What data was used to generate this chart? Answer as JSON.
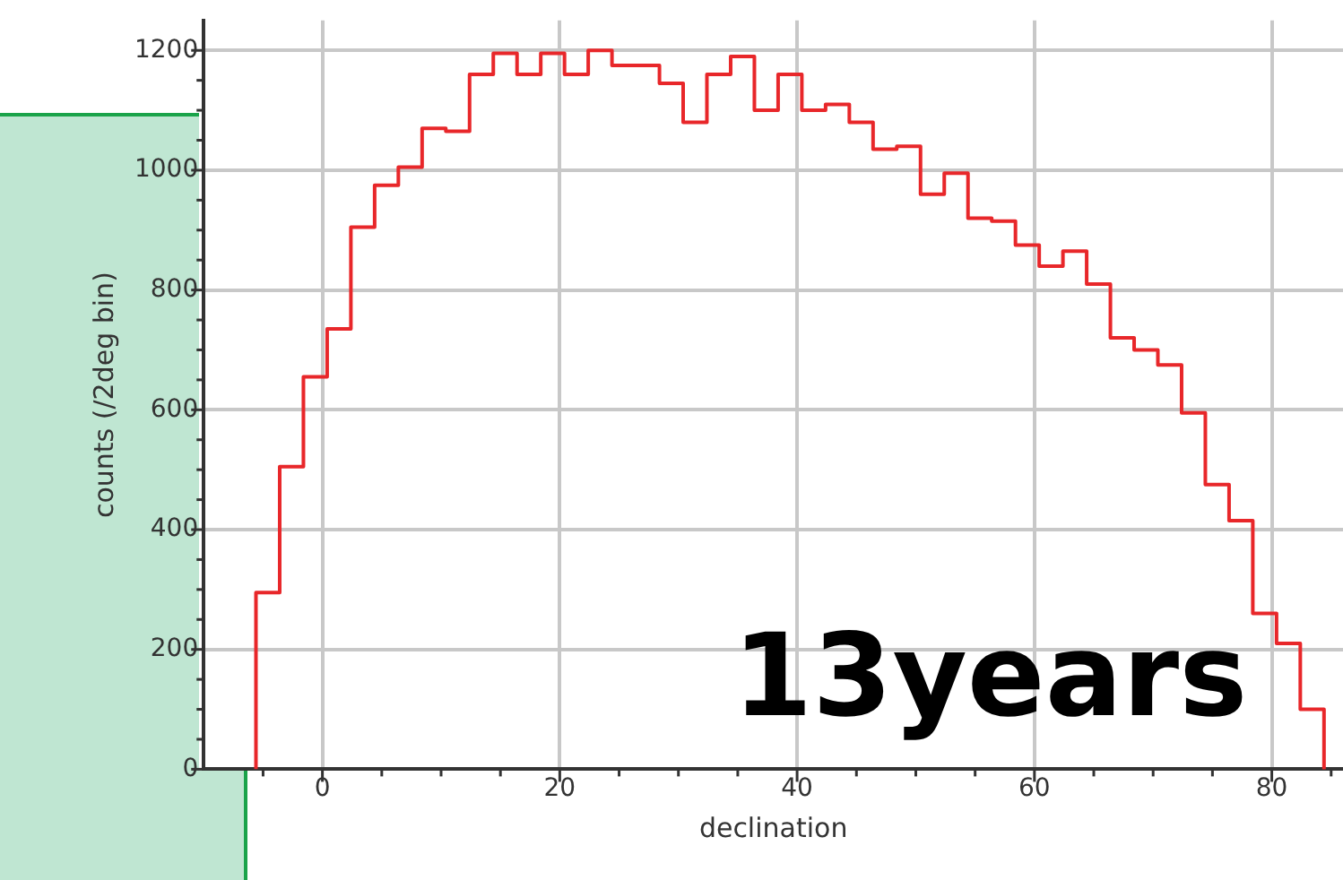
{
  "chart_data": {
    "type": "histogram",
    "xlabel": "declination",
    "ylabel": "counts (/2deg bin)",
    "annotations": [
      "13years"
    ],
    "bins": [
      -5.6,
      -3.6,
      -1.6,
      0.4,
      2.4,
      4.4,
      6.4,
      8.4,
      10.4,
      12.4,
      14.4,
      16.4,
      18.4,
      20.4,
      22.4,
      24.4,
      26.4,
      28.4,
      30.4,
      32.4,
      34.4,
      36.4,
      38.4,
      40.4,
      42.4,
      44.4,
      46.4,
      48.4,
      50.4,
      52.4,
      54.4,
      56.4,
      58.4,
      60.4,
      62.4,
      64.4,
      66.4,
      68.4,
      70.4,
      72.4,
      74.4,
      76.4,
      78.4,
      80.4,
      82.4,
      84.4
    ],
    "values": [
      295,
      505,
      655,
      735,
      905,
      975,
      1005,
      1070,
      1065,
      1160,
      1195,
      1160,
      1195,
      1160,
      1200,
      1175,
      1175,
      1145,
      1080,
      1160,
      1190,
      1100,
      1160,
      1100,
      1110,
      1080,
      1035,
      1040,
      960,
      995,
      920,
      915,
      875,
      840,
      865,
      810,
      720,
      700,
      675,
      595,
      475,
      415,
      260,
      210,
      100
    ],
    "color": "#e8272a",
    "xlim": [
      -10,
      86
    ],
    "xticks": [
      {
        "value": -5,
        "label": null
      },
      0,
      {
        "value": 5,
        "label": null
      },
      {
        "value": 10,
        "label": null
      },
      {
        "value": 15,
        "label": null
      },
      20,
      {
        "value": 25,
        "label": null
      },
      {
        "value": 30,
        "label": null
      },
      {
        "value": 35,
        "label": null
      },
      40,
      {
        "value": 45,
        "label": null
      },
      {
        "value": 50,
        "label": null
      },
      {
        "value": 55,
        "label": null
      },
      60,
      {
        "value": 65,
        "label": null
      },
      {
        "value": 70,
        "label": null
      },
      {
        "value": 75,
        "label": null
      },
      80,
      {
        "value": 85,
        "label": null
      }
    ],
    "ylim": [
      0,
      1250
    ],
    "yticks": [
      0,
      {
        "value": 50,
        "label": null
      },
      {
        "value": 100,
        "label": null
      },
      {
        "value": 150,
        "label": null
      },
      200,
      {
        "value": 250,
        "label": null
      },
      {
        "value": 300,
        "label": null
      },
      {
        "value": 350,
        "label": null
      },
      400,
      {
        "value": 450,
        "label": null
      },
      {
        "value": 500,
        "label": null
      },
      {
        "value": 550,
        "label": null
      },
      600,
      {
        "value": 650,
        "label": null
      },
      {
        "value": 700,
        "label": null
      },
      {
        "value": 750,
        "label": null
      },
      800,
      {
        "value": 850,
        "label": null
      },
      {
        "value": 900,
        "label": null
      },
      {
        "value": 950,
        "label": null
      },
      1000,
      {
        "value": 1050,
        "label": null
      },
      {
        "value": 1100,
        "label": null
      },
      {
        "value": 1150,
        "label": null
      },
      1200
    ],
    "grid": true
  }
}
